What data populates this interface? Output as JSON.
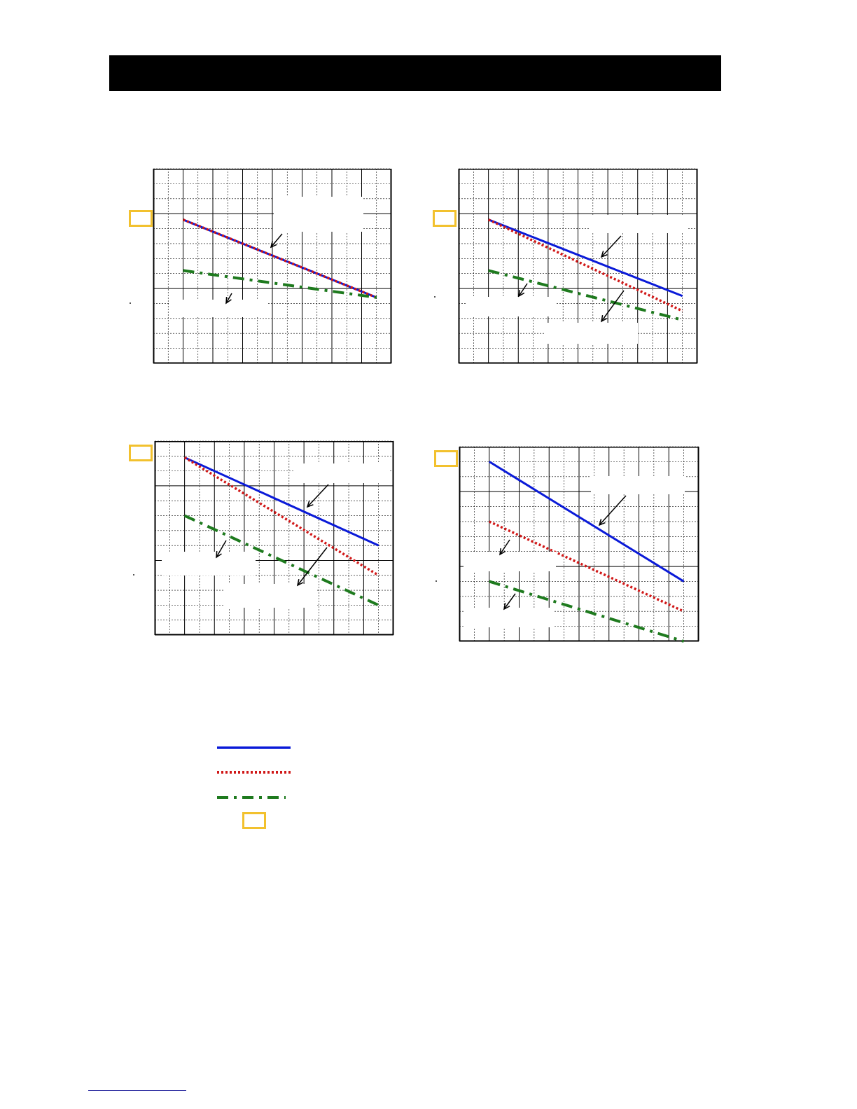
{
  "colors": {
    "header": "#000000",
    "badge": "#F2C12E",
    "series_solid": "#0A1AD8",
    "series_dotted": "#D01818",
    "series_dashdot": "#1E7A1E",
    "grid": "#000000"
  },
  "legend": {
    "items": [
      {
        "style": "solid",
        "color": "#0A1AD8"
      },
      {
        "style": "dotted",
        "color": "#D01818"
      },
      {
        "style": "dashdot",
        "color": "#1E7A1E"
      }
    ]
  },
  "chart_data": [
    {
      "type": "line",
      "grid": true,
      "xlim": [
        0,
        16
      ],
      "ylim": [
        0,
        13
      ],
      "series": [
        {
          "style": "solid",
          "x": [
            2,
            15
          ],
          "values": [
            9.6,
            4.4
          ]
        },
        {
          "style": "dotted",
          "x": [
            2,
            15
          ],
          "values": [
            9.6,
            4.4
          ]
        },
        {
          "style": "dashdot",
          "x": [
            2,
            15
          ],
          "values": [
            6.2,
            4.4
          ]
        }
      ]
    },
    {
      "type": "line",
      "grid": true,
      "xlim": [
        0,
        16
      ],
      "ylim": [
        0,
        13
      ],
      "series": [
        {
          "style": "solid",
          "x": [
            2,
            15
          ],
          "values": [
            9.6,
            4.5
          ]
        },
        {
          "style": "dotted",
          "x": [
            2,
            15
          ],
          "values": [
            9.6,
            3.5
          ]
        },
        {
          "style": "dashdot",
          "x": [
            2,
            15
          ],
          "values": [
            6.2,
            2.9
          ]
        }
      ]
    },
    {
      "type": "line",
      "grid": true,
      "xlim": [
        0,
        16
      ],
      "ylim": [
        0,
        13
      ],
      "series": [
        {
          "style": "solid",
          "x": [
            2,
            15
          ],
          "values": [
            11.9,
            6.0
          ]
        },
        {
          "style": "dotted",
          "x": [
            2,
            15
          ],
          "values": [
            11.9,
            4.0
          ]
        },
        {
          "style": "dashdot",
          "x": [
            2,
            15
          ],
          "values": [
            8.0,
            2.0
          ]
        }
      ]
    },
    {
      "type": "line",
      "grid": true,
      "xlim": [
        0,
        16
      ],
      "ylim": [
        0,
        13
      ],
      "series": [
        {
          "style": "solid",
          "x": [
            2,
            15
          ],
          "values": [
            12.0,
            4.0
          ]
        },
        {
          "style": "dotted",
          "x": [
            2,
            15
          ],
          "values": [
            8.0,
            2.0
          ]
        },
        {
          "style": "dashdot",
          "x": [
            2,
            15
          ],
          "values": [
            4.0,
            0.0
          ]
        }
      ]
    }
  ]
}
